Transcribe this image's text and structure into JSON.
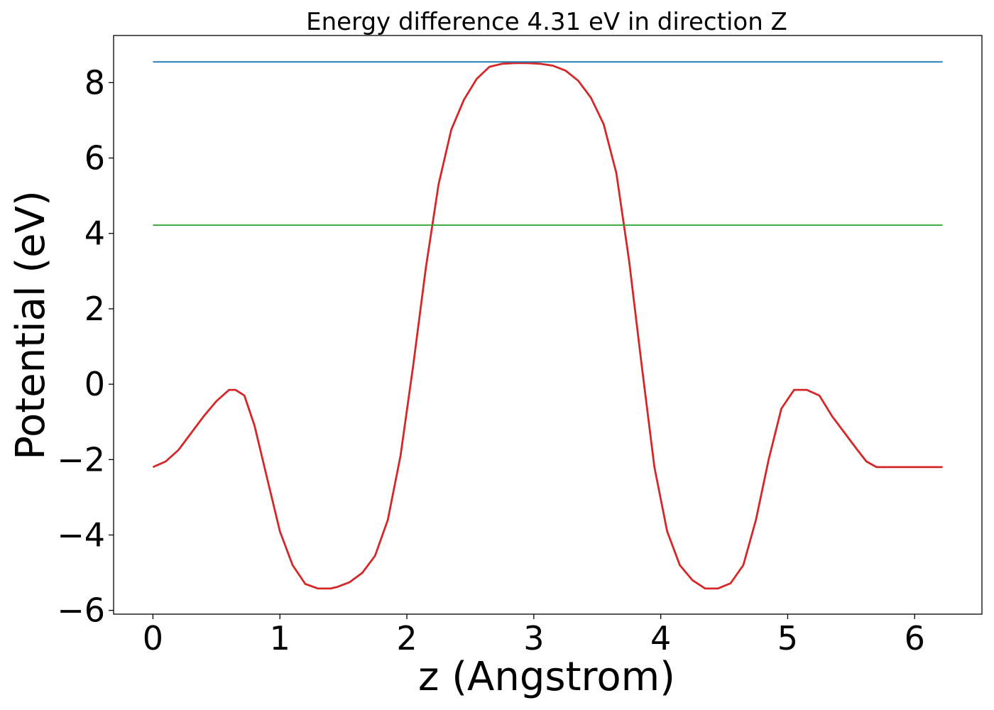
{
  "chart_data": {
    "type": "line",
    "title": "Energy difference 4.31 eV in direction Z",
    "xlabel": "z (Angstrom)",
    "ylabel": "Potential (eV)",
    "xlim": [
      -0.31,
      6.53
    ],
    "ylim": [
      -6.1,
      9.25
    ],
    "xticks": [
      0,
      1,
      2,
      3,
      4,
      5,
      6
    ],
    "yticks": [
      -6,
      -4,
      -2,
      0,
      2,
      4,
      6,
      8
    ],
    "xtick_labels": [
      "0",
      "1",
      "2",
      "3",
      "4",
      "5",
      "6"
    ],
    "ytick_labels": [
      "−6",
      "−4",
      "−2",
      "0",
      "2",
      "4",
      "6",
      "8"
    ],
    "grid": false,
    "legend": "none",
    "series": [
      {
        "color": "#d62728",
        "x": [
          0.0,
          0.1,
          0.2,
          0.3,
          0.4,
          0.5,
          0.6,
          0.65,
          0.72,
          0.8,
          0.9,
          1.0,
          1.1,
          1.2,
          1.3,
          1.4,
          1.45,
          1.55,
          1.65,
          1.75,
          1.85,
          1.95,
          2.05,
          2.15,
          2.25,
          2.35,
          2.45,
          2.55,
          2.65,
          2.75,
          2.85,
          2.95,
          3.05,
          3.15,
          3.25,
          3.35,
          3.45,
          3.55,
          3.65,
          3.75,
          3.85,
          3.95,
          4.05,
          4.15,
          4.25,
          4.35,
          4.45,
          4.55,
          4.65,
          4.75,
          4.85,
          4.95,
          5.05,
          5.15,
          5.25,
          5.35,
          5.45,
          5.55,
          5.62,
          5.7,
          5.8,
          5.9,
          6.0,
          6.1,
          6.22
        ],
        "y": [
          -2.2,
          -2.05,
          -1.75,
          -1.3,
          -0.85,
          -0.45,
          -0.15,
          -0.15,
          -0.3,
          -1.1,
          -2.5,
          -3.9,
          -4.8,
          -5.3,
          -5.42,
          -5.42,
          -5.38,
          -5.25,
          -5.0,
          -4.55,
          -3.6,
          -1.9,
          0.5,
          3.1,
          5.3,
          6.75,
          7.55,
          8.1,
          8.42,
          8.5,
          8.52,
          8.52,
          8.5,
          8.45,
          8.32,
          8.05,
          7.6,
          6.9,
          5.6,
          3.3,
          0.5,
          -2.2,
          -3.9,
          -4.8,
          -5.2,
          -5.42,
          -5.42,
          -5.28,
          -4.8,
          -3.6,
          -2.0,
          -0.65,
          -0.15,
          -0.15,
          -0.3,
          -0.85,
          -1.3,
          -1.75,
          -2.05,
          -2.2,
          -2.2,
          -2.2,
          -2.2,
          -2.2,
          -2.2
        ]
      },
      {
        "color": "#1f77b4",
        "x": [
          0.0,
          6.22
        ],
        "y": [
          8.55,
          8.55
        ]
      },
      {
        "color": "#2ca02c",
        "x": [
          0.0,
          6.22
        ],
        "y": [
          4.22,
          4.22
        ]
      }
    ]
  }
}
